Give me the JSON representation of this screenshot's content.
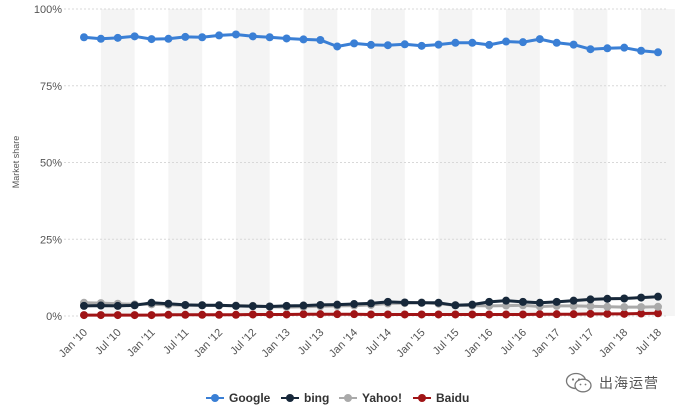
{
  "chart_data": {
    "type": "line",
    "ylabel": "Market share",
    "xlabel": "",
    "ylim": [
      0,
      100
    ],
    "yticks": [
      "0%",
      "25%",
      "50%",
      "75%",
      "100%"
    ],
    "ytick_values": [
      0,
      25,
      50,
      75,
      100
    ],
    "xticks": [
      "Jan '10",
      "Jul '10",
      "Jan '11",
      "Jul '11",
      "Jan '12",
      "Jul '12",
      "Jan '13",
      "Jul '13",
      "Jan '14",
      "Jul '14",
      "Jan '15",
      "Jul '15",
      "Jan '16",
      "Jul '16",
      "Jan '17",
      "Jul '17",
      "Jan '18",
      "Jul '18"
    ],
    "grid": true,
    "legend_position": "bottom",
    "x": [
      "Jan '10",
      "Apr '10",
      "Jul '10",
      "Oct '10",
      "Jan '11",
      "Apr '11",
      "Jul '11",
      "Oct '11",
      "Jan '12",
      "Apr '12",
      "Jul '12",
      "Oct '12",
      "Jan '13",
      "Apr '13",
      "Jul '13",
      "Oct '13",
      "Jan '14",
      "Apr '14",
      "Jul '14",
      "Oct '14",
      "Jan '15",
      "Apr '15",
      "Jul '15",
      "Oct '15",
      "Jan '16",
      "Apr '16",
      "Jul '16",
      "Oct '16",
      "Jan '17",
      "Apr '17",
      "Jul '17",
      "Oct '17",
      "Jan '18",
      "Apr '18",
      "Jul '18"
    ],
    "series": [
      {
        "name": "Google",
        "color": "#3a7fd5",
        "values": [
          90.8,
          90.3,
          90.6,
          91.1,
          90.2,
          90.3,
          90.9,
          90.8,
          91.4,
          91.7,
          91.1,
          90.8,
          90.4,
          90.1,
          89.9,
          87.8,
          88.8,
          88.3,
          88.2,
          88.5,
          88.0,
          88.4,
          89.0,
          89.0,
          88.3,
          89.4,
          89.2,
          90.2,
          89.0,
          88.4,
          86.9,
          87.2,
          87.4,
          86.4,
          85.9
        ]
      },
      {
        "name": "bing",
        "color": "#17283a",
        "values": [
          3.3,
          3.4,
          3.3,
          3.5,
          4.3,
          4.0,
          3.6,
          3.5,
          3.5,
          3.3,
          3.2,
          3.1,
          3.3,
          3.4,
          3.6,
          3.7,
          3.9,
          4.1,
          4.6,
          4.4,
          4.3,
          4.3,
          3.5,
          3.7,
          4.6,
          5.0,
          4.6,
          4.3,
          4.6,
          5.0,
          5.4,
          5.6,
          5.7,
          6.0,
          6.3
        ]
      },
      {
        "name": "Yahoo!",
        "color": "#aaaaaa",
        "values": [
          4.3,
          4.2,
          4.0,
          3.8,
          3.8,
          3.6,
          3.5,
          3.5,
          3.4,
          3.4,
          3.3,
          3.0,
          2.9,
          3.0,
          3.2,
          3.3,
          3.4,
          3.6,
          4.1,
          4.2,
          4.4,
          4.0,
          3.5,
          3.4,
          3.3,
          3.4,
          3.5,
          3.1,
          3.3,
          3.3,
          3.2,
          3.0,
          2.9,
          2.9,
          3.0
        ]
      },
      {
        "name": "Baidu",
        "color": "#a01416",
        "values": [
          0.3,
          0.3,
          0.3,
          0.3,
          0.3,
          0.4,
          0.4,
          0.4,
          0.4,
          0.4,
          0.5,
          0.5,
          0.5,
          0.6,
          0.6,
          0.6,
          0.6,
          0.5,
          0.5,
          0.5,
          0.5,
          0.5,
          0.5,
          0.5,
          0.5,
          0.5,
          0.5,
          0.6,
          0.6,
          0.6,
          0.7,
          0.7,
          0.7,
          0.8,
          0.9
        ]
      }
    ]
  },
  "watermark": {
    "icon": "wechat-icon",
    "text": "出海运营"
  }
}
